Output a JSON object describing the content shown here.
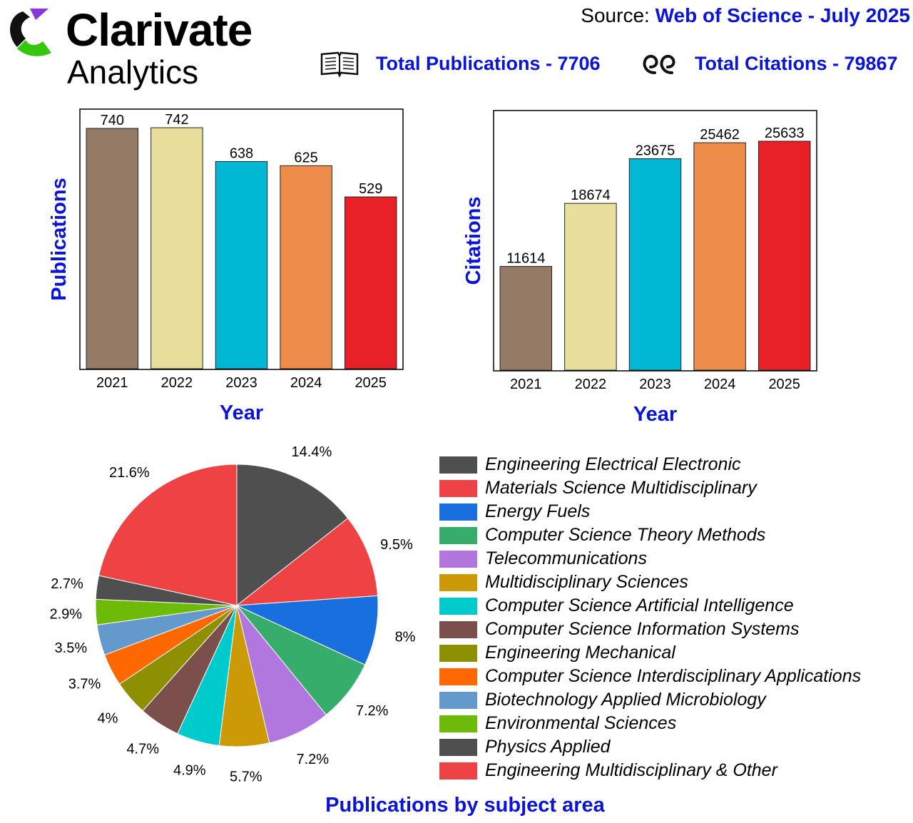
{
  "header": {
    "brand": "Clarivate",
    "brand_sub": "Analytics",
    "source_label": "Source:",
    "source_value": "Web of Science - July 2025",
    "total_publications": "Total Publications - 7706",
    "total_citations": "Total Citations - 79867",
    "icons": [
      "book-icon",
      "quote-icon"
    ]
  },
  "chart_data": [
    {
      "type": "bar",
      "categories": [
        "2021",
        "2022",
        "2023",
        "2024",
        "2025"
      ],
      "values": [
        740,
        742,
        638,
        625,
        529
      ],
      "data_labels": [
        "740",
        "742",
        "638",
        "625",
        "529"
      ],
      "colors": [
        "#957a65",
        "#e8df9c",
        "#00b8d4",
        "#ee8c4a",
        "#e82128"
      ],
      "xlabel": "Year",
      "ylabel": "Publications",
      "ylim": [
        0,
        740
      ],
      "grid": false
    },
    {
      "type": "bar",
      "categories": [
        "2021",
        "2022",
        "2023",
        "2024",
        "2025"
      ],
      "values": [
        11614,
        18674,
        23675,
        25462,
        25633
      ],
      "data_labels": [
        "11614",
        "18674",
        "23675",
        "25462",
        "25633"
      ],
      "colors": [
        "#957a65",
        "#e8df9c",
        "#00b8d4",
        "#ee8c4a",
        "#e82128"
      ],
      "xlabel": "Year",
      "ylabel": "Citations",
      "ylim": [
        0,
        25633
      ],
      "grid": false
    },
    {
      "type": "pie",
      "title": "Publications by subject area",
      "legend_position": "right",
      "categories": [
        "Engineering Electrical Electronic",
        "Materials Science Multidisciplinary",
        "Energy Fuels",
        "Computer Science Theory Methods",
        "Telecommunications",
        "Multidisciplinary Sciences",
        "Computer Science Artificial Intelligence",
        "Computer Science Information Systems",
        "Engineering Mechanical",
        "Computer Science Interdisciplinary Applications",
        "Biotechnology Applied Microbiology",
        "Environmental Sciences",
        "Physics Applied",
        "Engineering Multidisciplinary & Other"
      ],
      "values": [
        14.4,
        9.5,
        8,
        7.2,
        7.2,
        5.7,
        4.9,
        4.7,
        4,
        3.7,
        3.5,
        2.9,
        2.7,
        21.6
      ],
      "data_labels": [
        "14.4%",
        "9.5%",
        "8%",
        "7.2%",
        "7.2%",
        "5.7%",
        "4.9%",
        "4.7%",
        "4%",
        "3.7%",
        "3.5%",
        "2.9%",
        "2.7%",
        "21.6%"
      ],
      "colors": [
        "#4f4f4f",
        "#ef4244",
        "#1a6fdf",
        "#37ad6b",
        "#b177de",
        "#cc9a06",
        "#00cbcc",
        "#7b4f4b",
        "#8f8f02",
        "#ff6700",
        "#6399cb",
        "#6dba09",
        "#4f4f4f",
        "#ef4244"
      ]
    }
  ]
}
